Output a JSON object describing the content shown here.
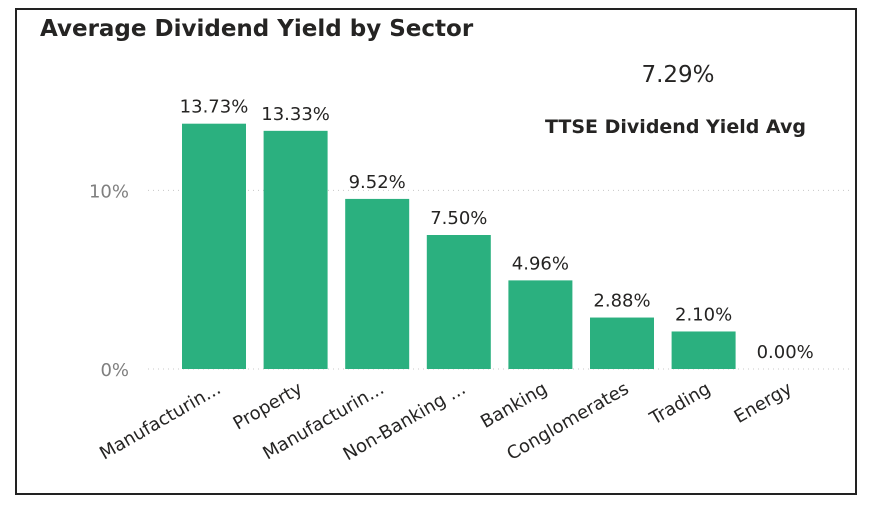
{
  "chart_data": {
    "type": "bar",
    "title": "Average Dividend Yield by Sector",
    "categories": [
      "Manufacturin...",
      "Property",
      "Manufacturin...",
      "Non-Banking ...",
      "Banking",
      "Conglomerates",
      "Trading",
      "Energy"
    ],
    "values": [
      13.73,
      13.33,
      9.52,
      7.5,
      4.96,
      2.88,
      2.1,
      0.0
    ],
    "data_labels": [
      "13.73%",
      "13.33%",
      "9.52%",
      "7.50%",
      "4.96%",
      "2.88%",
      "2.10%",
      "0.00%"
    ],
    "y_ticks": [
      {
        "value": 0,
        "label": "0%"
      },
      {
        "value": 10,
        "label": "10%"
      }
    ],
    "ylim": [
      0,
      15
    ],
    "xlabel": "",
    "ylabel": "",
    "grid": true,
    "bar_color": "#2bb07f"
  },
  "kpi": {
    "value": "7.29%",
    "label": "TTSE Dividend Yield Avg"
  }
}
